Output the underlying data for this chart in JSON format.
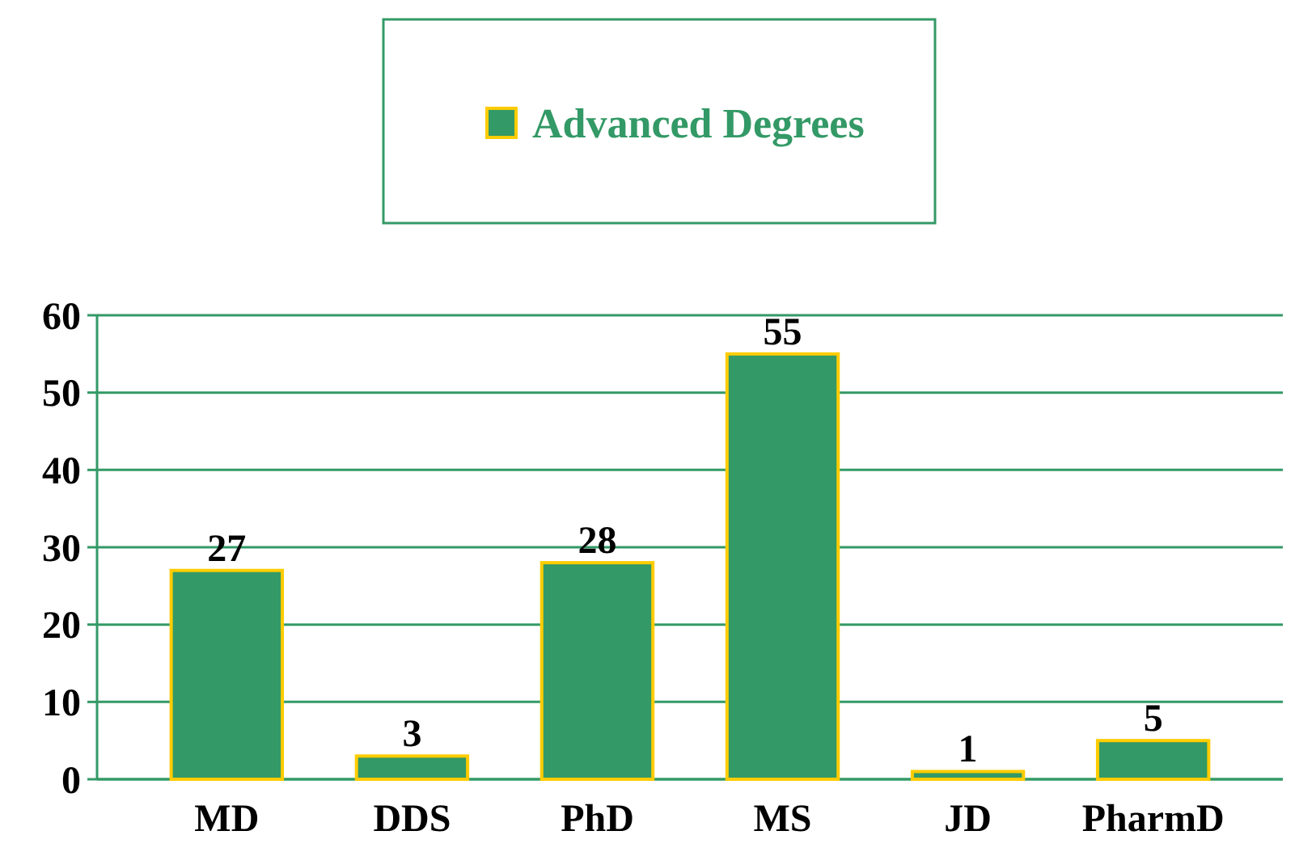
{
  "chart_data": {
    "type": "bar",
    "categories": [
      "MD",
      "DDS",
      "PhD",
      "MS",
      "JD",
      "PharmD"
    ],
    "series": [
      {
        "name": "Advanced Degrees",
        "color": "#339966",
        "values": [
          27,
          3,
          28,
          55,
          1,
          5
        ]
      }
    ],
    "ylim": [
      0,
      60
    ],
    "yticks": [
      0,
      10,
      20,
      30,
      40,
      50,
      60
    ],
    "grid": "y",
    "legend": "top",
    "data_labels": true
  }
}
